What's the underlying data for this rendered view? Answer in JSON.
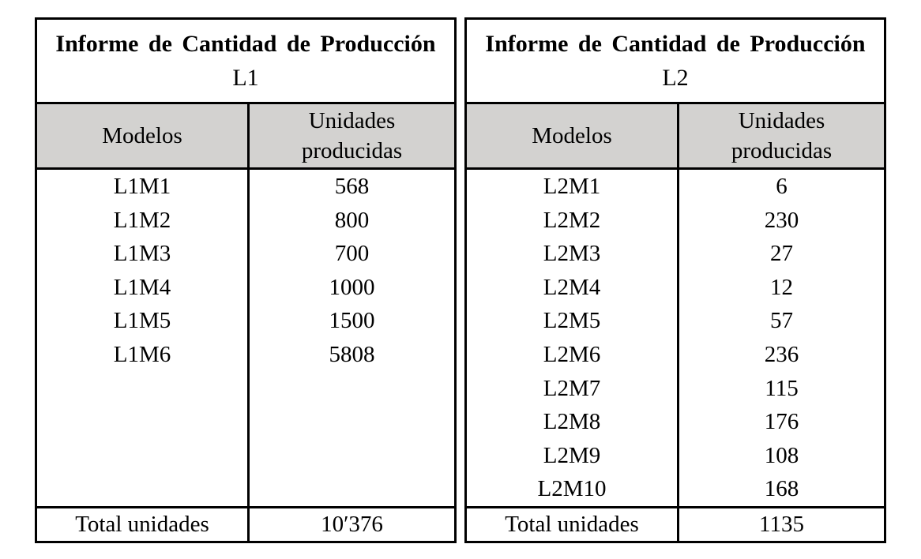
{
  "colors": {
    "background": "#ffffff",
    "border": "#000000",
    "header_bg": "#d3d2d0",
    "text": "#000000"
  },
  "tables": [
    {
      "title": "Informe de Cantidad de Producción",
      "subtitle": "L1",
      "col_model": "Modelos",
      "col_units": "Unidades producidas",
      "rows": [
        {
          "model": "L1M1",
          "units": "568"
        },
        {
          "model": "L1M2",
          "units": "800"
        },
        {
          "model": "L1M3",
          "units": "700"
        },
        {
          "model": "L1M4",
          "units": "1000"
        },
        {
          "model": "L1M5",
          "units": "1500"
        },
        {
          "model": "L1M6",
          "units": "5808"
        }
      ],
      "total_label": "Total unidades",
      "total_value": "10′376"
    },
    {
      "title": "Informe de Cantidad de Producción",
      "subtitle": "L2",
      "col_model": "Modelos",
      "col_units": "Unidades producidas",
      "rows": [
        {
          "model": "L2M1",
          "units": "6"
        },
        {
          "model": "L2M2",
          "units": "230"
        },
        {
          "model": "L2M3",
          "units": "27"
        },
        {
          "model": "L2M4",
          "units": "12"
        },
        {
          "model": "L2M5",
          "units": "57"
        },
        {
          "model": "L2M6",
          "units": "236"
        },
        {
          "model": "L2M7",
          "units": "115"
        },
        {
          "model": "L2M8",
          "units": "176"
        },
        {
          "model": "L2M9",
          "units": "108"
        },
        {
          "model": "L2M10",
          "units": "168"
        }
      ],
      "total_label": "Total unidades",
      "total_value": "1135"
    }
  ]
}
